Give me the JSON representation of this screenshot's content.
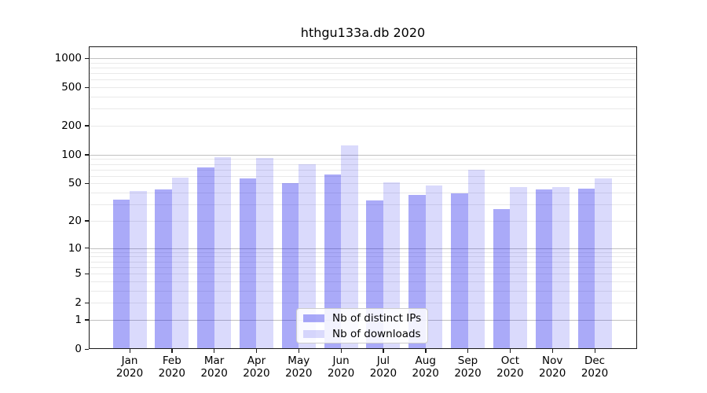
{
  "title": "hthgu133a.db 2020",
  "chart_data": {
    "type": "bar",
    "title": "hthgu133a.db 2020",
    "yscale": "log10(1+x)",
    "grid": true,
    "ylim": [
      0,
      1323
    ],
    "y_ticks": [
      0,
      1,
      2,
      5,
      10,
      20,
      50,
      100,
      200,
      500,
      1000
    ],
    "grid_minor_values": [
      2,
      3,
      4,
      5,
      6,
      7,
      8,
      9,
      20,
      30,
      40,
      50,
      60,
      70,
      80,
      90,
      200,
      300,
      400,
      500,
      600,
      700,
      800,
      900
    ],
    "grid_major_values": [
      1,
      10,
      100,
      1000
    ],
    "months": [
      "Jan",
      "Feb",
      "Mar",
      "Apr",
      "May",
      "Jun",
      "Jul",
      "Aug",
      "Sep",
      "Oct",
      "Nov",
      "Dec"
    ],
    "x_year_label": "2020",
    "series": [
      {
        "name": "Nb of distinct IPs",
        "color": "rgba(25,25,235,0.37)",
        "values": [
          34,
          43,
          73,
          57,
          50,
          62,
          33,
          38,
          39,
          27,
          43,
          44
        ]
      },
      {
        "name": "Nb of downloads",
        "color": "rgba(25,25,235,0.16)",
        "values": [
          42,
          58,
          94,
          93,
          79,
          124,
          51,
          48,
          69,
          46,
          46,
          56
        ]
      }
    ],
    "legend_position": "lower-center",
    "colors": {
      "grid_minor": "#e9e9e9",
      "grid_major": "#c0c0c0",
      "axis": "#1a1a1a",
      "background": "#ffffff"
    }
  }
}
